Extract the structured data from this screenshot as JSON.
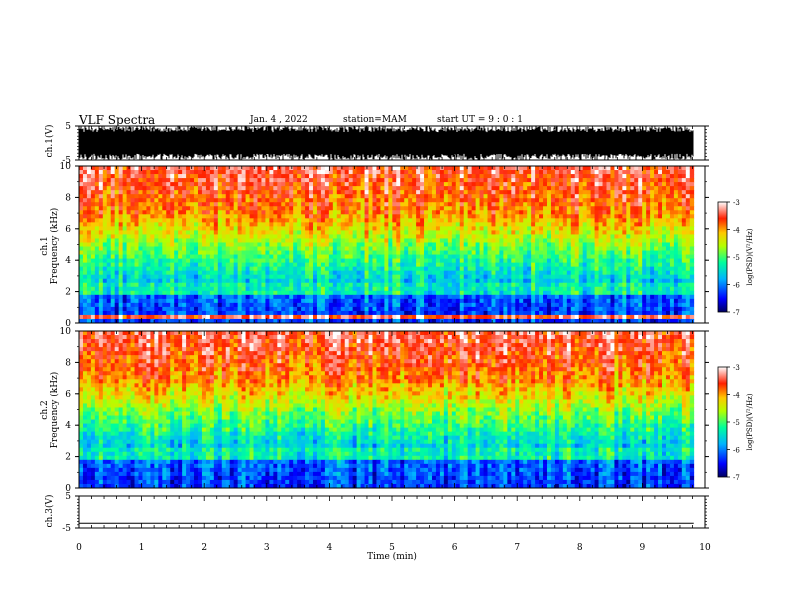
{
  "header": {
    "title": "VLF Spectra",
    "date": "Jan. 4 , 2022",
    "station": "station=MAM",
    "start": "start UT =  9 : 0 : 1"
  },
  "chart_data": [
    {
      "type": "line",
      "panel": "waveform-ch1",
      "ylabel": "ch.1(V)",
      "ylim": [
        -5,
        5
      ],
      "yticks": [
        "5",
        "-5"
      ],
      "xlim": [
        0,
        10
      ],
      "description_level": "dense broadband noise spanning approximately -5 to 5 V across 0–9.8 min"
    },
    {
      "type": "heatmap",
      "panel": "spectrogram-ch1",
      "ylabel": "ch.1 Frequency (kHz)",
      "ylim": [
        0,
        10
      ],
      "yticks": [
        "0",
        "2",
        "4",
        "6",
        "8",
        "10"
      ],
      "xlim": [
        0,
        10
      ],
      "colorbar": {
        "label": "log(PSD)(V²/Hz)",
        "range": [
          -7,
          -3
        ],
        "ticks": [
          "-3",
          "-4",
          "-5",
          "-6",
          "-7"
        ],
        "colors": [
          "#000080",
          "#0000ff",
          "#00c8ff",
          "#00ff80",
          "#ffff00",
          "#ff8000",
          "#ff0000",
          "#ffffff"
        ]
      }
    },
    {
      "type": "heatmap",
      "panel": "spectrogram-ch2",
      "ylabel": "ch.2 Frequency (kHz)",
      "ylim": [
        0,
        10
      ],
      "yticks": [
        "0",
        "2",
        "4",
        "6",
        "8",
        "10"
      ],
      "xlim": [
        0,
        10
      ],
      "colorbar": {
        "label": "log(PSD)(V²/Hz)",
        "range": [
          -7,
          -3
        ],
        "ticks": [
          "-3",
          "-4",
          "-5",
          "-6",
          "-7"
        ]
      }
    },
    {
      "type": "line",
      "panel": "waveform-ch3",
      "ylabel": "ch.3(V)",
      "ylim": [
        -5,
        5
      ],
      "yticks": [
        "5",
        "-5"
      ],
      "xlim": [
        0,
        10
      ],
      "level": -3.5
    }
  ],
  "xaxis": {
    "label": "Time (min)",
    "ticks": [
      "0",
      "1",
      "2",
      "3",
      "4",
      "5",
      "6",
      "7",
      "8",
      "9",
      "10"
    ],
    "data_end": 9.82
  },
  "labels": {
    "ch1_wave": "ch.1(V)",
    "ch1_spec_line1": "ch.1",
    "ch1_spec_line2": "Frequency (kHz)",
    "ch2_spec_line1": "ch.2",
    "ch2_spec_line2": "Frequency (kHz)",
    "ch3_wave": "ch.3(V)",
    "colorbar_label": "log(PSD)(V²/Hz)"
  }
}
